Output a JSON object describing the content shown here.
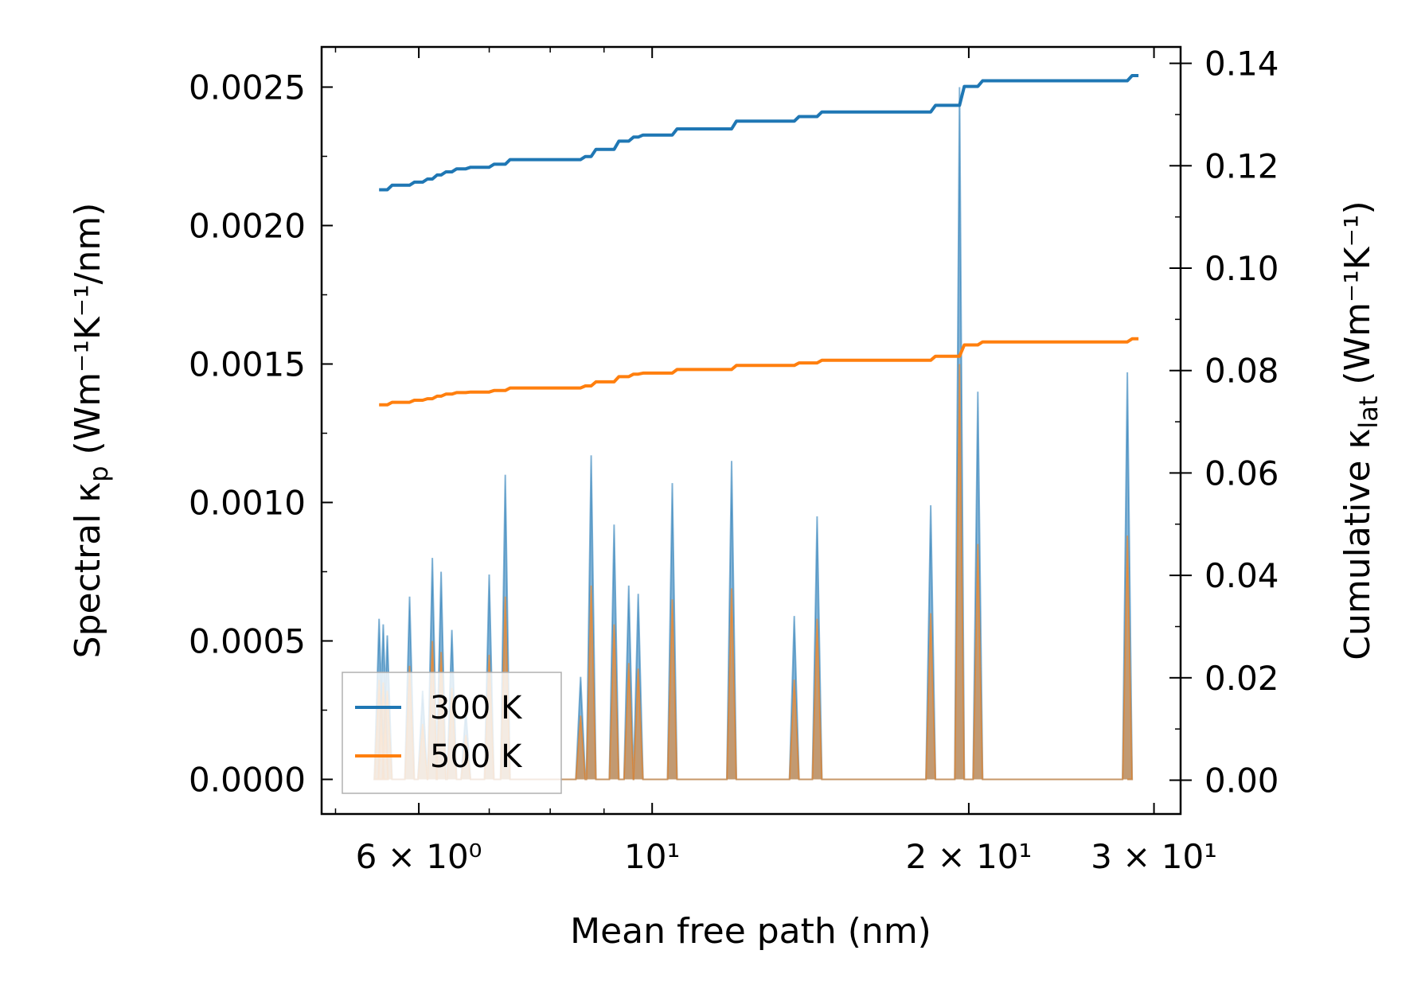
{
  "chart_data": {
    "type": "line",
    "xlabel": "Mean free path (nm)",
    "ylabel_left_main": "Spectral κ",
    "ylabel_left_sub": "p",
    "ylabel_left_unit": " (Wm⁻¹K⁻¹/nm)",
    "ylabel_right_main": "Cumulative κ",
    "ylabel_right_sub": "lat",
    "ylabel_right_unit": " (Wm⁻¹K⁻¹)",
    "xscale": "log",
    "xlim": [
      4.85,
      31.8
    ],
    "ylim_left": [
      -0.000125,
      0.002645
    ],
    "ylim_right": [
      -0.0066,
      0.1432
    ],
    "xticks": [
      {
        "value": 6,
        "label": "6 × 10⁰"
      },
      {
        "value": 10,
        "label": "10¹"
      },
      {
        "value": 20,
        "label": "2 × 10¹"
      },
      {
        "value": 30,
        "label": "3 × 10¹"
      }
    ],
    "yticks_left": [
      {
        "value": 0.0,
        "label": "0.0000"
      },
      {
        "value": 0.0005,
        "label": "0.0005"
      },
      {
        "value": 0.001,
        "label": "0.0010"
      },
      {
        "value": 0.0015,
        "label": "0.0015"
      },
      {
        "value": 0.002,
        "label": "0.0020"
      },
      {
        "value": 0.0025,
        "label": "0.0025"
      }
    ],
    "yticks_right": [
      {
        "value": 0.0,
        "label": "0.00"
      },
      {
        "value": 0.02,
        "label": "0.02"
      },
      {
        "value": 0.04,
        "label": "0.04"
      },
      {
        "value": 0.06,
        "label": "0.06"
      },
      {
        "value": 0.08,
        "label": "0.08"
      },
      {
        "value": 0.1,
        "label": "0.10"
      },
      {
        "value": 0.12,
        "label": "0.12"
      },
      {
        "value": 0.14,
        "label": "0.14"
      }
    ],
    "legend": {
      "position": "lower-left",
      "entries": [
        "300 K",
        "500 K"
      ]
    },
    "series": [
      {
        "name": "300 K",
        "color": "#1f77b4",
        "kind": "spectral",
        "peaks": [
          [
            5.5,
            0.00058
          ],
          [
            5.55,
            0.00056
          ],
          [
            5.6,
            0.00052
          ],
          [
            5.88,
            0.00066
          ],
          [
            6.05,
            0.00032
          ],
          [
            6.18,
            0.0008
          ],
          [
            6.3,
            0.00075
          ],
          [
            6.45,
            0.00054
          ],
          [
            6.65,
            0.00025
          ],
          [
            7.0,
            0.00074
          ],
          [
            7.25,
            0.0011
          ],
          [
            8.55,
            0.00037
          ],
          [
            8.75,
            0.00117
          ],
          [
            9.2,
            0.00092
          ],
          [
            9.5,
            0.0007
          ],
          [
            9.7,
            0.00067
          ],
          [
            10.45,
            0.00107
          ],
          [
            11.9,
            0.00115
          ],
          [
            13.65,
            0.00059
          ],
          [
            14.35,
            0.00095
          ],
          [
            18.4,
            0.00099
          ],
          [
            19.6,
            0.0025
          ],
          [
            20.4,
            0.0014
          ],
          [
            28.3,
            0.00147
          ]
        ]
      },
      {
        "name": "500 K",
        "color": "#ff7f0e",
        "kind": "spectral",
        "peaks": [
          [
            5.5,
            0.00036
          ],
          [
            5.55,
            0.00035
          ],
          [
            5.6,
            0.00032
          ],
          [
            5.88,
            0.00041
          ],
          [
            6.05,
            0.0002
          ],
          [
            6.18,
            0.0005
          ],
          [
            6.3,
            0.00046
          ],
          [
            6.45,
            0.00033
          ],
          [
            6.65,
            0.00016
          ],
          [
            7.0,
            0.00045
          ],
          [
            7.25,
            0.00066
          ],
          [
            8.55,
            0.00023
          ],
          [
            8.75,
            0.0007
          ],
          [
            9.2,
            0.00056
          ],
          [
            9.5,
            0.00042
          ],
          [
            9.7,
            0.0004
          ],
          [
            10.45,
            0.00065
          ],
          [
            11.9,
            0.00069
          ],
          [
            13.65,
            0.00036
          ],
          [
            14.35,
            0.00058
          ],
          [
            18.4,
            0.0006
          ],
          [
            19.6,
            0.0015
          ],
          [
            20.4,
            0.00085
          ],
          [
            28.3,
            0.00088
          ]
        ]
      },
      {
        "name": "300 K",
        "color": "#1f77b4",
        "kind": "cumulative",
        "x": [
          5.5,
          5.6,
          5.88,
          6.05,
          6.18,
          6.3,
          6.45,
          6.65,
          7.0,
          7.25,
          8.55,
          8.75,
          9.2,
          9.5,
          9.7,
          10.45,
          11.9,
          13.65,
          14.35,
          18.4,
          19.6,
          20.4,
          28.3,
          28.7
        ],
        "y": [
          0.1153,
          0.1162,
          0.1168,
          0.1174,
          0.1182,
          0.1188,
          0.1194,
          0.1197,
          0.1203,
          0.1212,
          0.1218,
          0.1232,
          0.1248,
          0.1256,
          0.126,
          0.1272,
          0.1287,
          0.1296,
          0.1305,
          0.1318,
          0.1355,
          0.1366,
          0.1376,
          0.1376
        ]
      },
      {
        "name": "500 K",
        "color": "#ff7f0e",
        "kind": "cumulative",
        "x": [
          5.5,
          5.6,
          5.88,
          6.05,
          6.18,
          6.3,
          6.45,
          6.65,
          7.0,
          7.25,
          8.55,
          8.75,
          9.2,
          9.5,
          9.7,
          10.45,
          11.9,
          13.65,
          14.35,
          18.4,
          19.6,
          20.4,
          28.3,
          28.7
        ],
        "y": [
          0.0733,
          0.0738,
          0.0742,
          0.0745,
          0.075,
          0.0754,
          0.0757,
          0.0758,
          0.0761,
          0.0766,
          0.077,
          0.0778,
          0.0788,
          0.0793,
          0.0795,
          0.0802,
          0.081,
          0.0815,
          0.082,
          0.0828,
          0.085,
          0.0856,
          0.0862,
          0.0862
        ]
      }
    ]
  }
}
